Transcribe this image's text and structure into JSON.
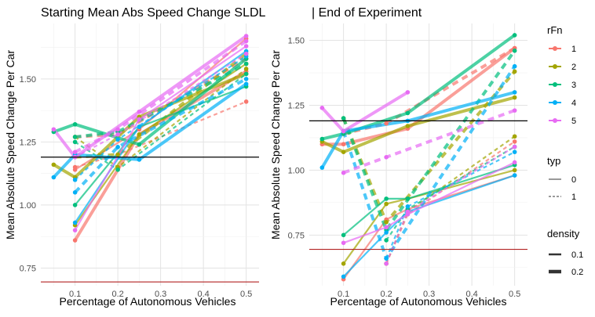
{
  "titles": {
    "left": "Starting Mean Abs Speed Change SLDL",
    "right": "| End of Experiment"
  },
  "legend": {
    "rfn_title": "rFn",
    "rfn_items": [
      "1",
      "2",
      "3",
      "4",
      "5"
    ],
    "typ_title": "typ",
    "typ_items": [
      "0",
      "1"
    ],
    "density_title": "density",
    "density_items": [
      "0.1",
      "0.2"
    ]
  },
  "colors": {
    "1": "#F8766D",
    "2": "#A3A500",
    "3": "#00BF7D",
    "4": "#00B0F6",
    "5": "#E76BF3",
    "hline_black": "#000000",
    "hline_red": "#B22222"
  },
  "chart_data": [
    {
      "type": "line",
      "title": "Starting Mean Abs Speed Change SLDL",
      "xlabel": "Percentage of Autonomous Vehicles",
      "ylabel": "Mean Absolute Speed Change Per Car",
      "xlim": [
        0.02,
        0.53
      ],
      "ylim": [
        0.68,
        1.72
      ],
      "xticks": [
        "0.1",
        "0.2",
        "0.3",
        "0.4",
        "0.5"
      ],
      "yticks": [
        "0.75",
        "1.00",
        "1.25",
        "1.50"
      ],
      "hlines": [
        {
          "y": 1.19,
          "color": "black"
        },
        {
          "y": 0.695,
          "color": "red"
        }
      ],
      "grid": true,
      "series": [
        {
          "rfn": "1",
          "typ": "0",
          "density": "0.2",
          "x": [
            0.1,
            0.25,
            0.5
          ],
          "y": [
            0.86,
            1.28,
            1.53
          ]
        },
        {
          "rfn": "1",
          "typ": "0",
          "density": "0.1",
          "x": [
            0.1,
            0.25,
            0.5
          ],
          "y": [
            1.14,
            1.3,
            1.66
          ]
        },
        {
          "rfn": "1",
          "typ": "1",
          "density": "0.2",
          "x": [
            0.1,
            0.2,
            0.5
          ],
          "y": [
            1.27,
            1.28,
            1.58
          ]
        },
        {
          "rfn": "1",
          "typ": "1",
          "density": "0.1",
          "x": [
            0.1,
            0.2,
            0.5
          ],
          "y": [
            1.15,
            1.2,
            1.41
          ]
        },
        {
          "rfn": "2",
          "typ": "0",
          "density": "0.2",
          "x": [
            0.05,
            0.1,
            0.25,
            0.5
          ],
          "y": [
            1.16,
            1.11,
            1.35,
            1.52
          ]
        },
        {
          "rfn": "2",
          "typ": "0",
          "density": "0.1",
          "x": [
            0.1,
            0.25,
            0.5
          ],
          "y": [
            0.92,
            1.28,
            1.56
          ]
        },
        {
          "rfn": "2",
          "typ": "1",
          "density": "0.2",
          "x": [
            0.1,
            0.2,
            0.5
          ],
          "y": [
            1.19,
            1.2,
            1.6
          ]
        },
        {
          "rfn": "2",
          "typ": "1",
          "density": "0.1",
          "x": [
            0.1,
            0.2,
            0.5
          ],
          "y": [
            1.27,
            1.15,
            1.54
          ]
        },
        {
          "rfn": "3",
          "typ": "0",
          "density": "0.2",
          "x": [
            0.05,
            0.1,
            0.25,
            0.5
          ],
          "y": [
            1.29,
            1.32,
            1.24,
            1.58
          ]
        },
        {
          "rfn": "3",
          "typ": "0",
          "density": "0.1",
          "x": [
            0.1,
            0.25,
            0.5
          ],
          "y": [
            1.0,
            1.31,
            1.47
          ]
        },
        {
          "rfn": "3",
          "typ": "1",
          "density": "0.2",
          "x": [
            0.1,
            0.2,
            0.5
          ],
          "y": [
            1.27,
            1.29,
            1.56
          ]
        },
        {
          "rfn": "3",
          "typ": "1",
          "density": "0.1",
          "x": [
            0.1,
            0.2,
            0.5
          ],
          "y": [
            1.25,
            1.14,
            1.52
          ]
        },
        {
          "rfn": "4",
          "typ": "0",
          "density": "0.2",
          "x": [
            0.05,
            0.1,
            0.25,
            0.5
          ],
          "y": [
            1.11,
            1.2,
            1.18,
            1.48
          ]
        },
        {
          "rfn": "4",
          "typ": "0",
          "density": "0.1",
          "x": [
            0.1,
            0.25,
            0.5
          ],
          "y": [
            0.93,
            1.31,
            1.61
          ]
        },
        {
          "rfn": "4",
          "typ": "1",
          "density": "0.2",
          "x": [
            0.1,
            0.2,
            0.5
          ],
          "y": [
            1.05,
            1.23,
            1.5
          ]
        },
        {
          "rfn": "4",
          "typ": "1",
          "density": "0.1",
          "x": [
            0.1,
            0.2,
            0.5
          ],
          "y": [
            1.1,
            1.26,
            1.59
          ]
        },
        {
          "rfn": "5",
          "typ": "0",
          "density": "0.2",
          "x": [
            0.05,
            0.1,
            0.25,
            0.5
          ],
          "y": [
            1.3,
            1.19,
            1.37,
            1.67
          ]
        },
        {
          "rfn": "5",
          "typ": "0",
          "density": "0.1",
          "x": [
            0.1,
            0.25,
            0.5
          ],
          "y": [
            0.9,
            1.34,
            1.63
          ]
        },
        {
          "rfn": "5",
          "typ": "1",
          "density": "0.2",
          "x": [
            0.1,
            0.2,
            0.5
          ],
          "y": [
            1.21,
            1.3,
            1.65
          ]
        },
        {
          "rfn": "5",
          "typ": "1",
          "density": "0.1",
          "x": [
            0.1,
            0.2,
            0.5
          ],
          "y": [
            1.19,
            1.28,
            1.6
          ]
        }
      ]
    },
    {
      "type": "line",
      "title": "| End of Experiment",
      "xlabel": "Percentage of Autonomous Vehicles",
      "ylabel": "Mean Absolute Speed Change Per Car",
      "xlim": [
        0.02,
        0.53
      ],
      "ylim": [
        0.555,
        1.565
      ],
      "xticks": [
        "0.1",
        "0.2",
        "0.3",
        "0.4",
        "0.5"
      ],
      "yticks": [
        "0.75",
        "1.00",
        "1.25",
        "1.50"
      ],
      "hlines": [
        {
          "y": 1.19,
          "color": "black"
        },
        {
          "y": 0.695,
          "color": "red"
        }
      ],
      "grid": true,
      "series": [
        {
          "rfn": "1",
          "typ": "0",
          "density": "0.2",
          "x": [
            0.05,
            0.1,
            0.25,
            0.5
          ],
          "y": [
            1.1,
            1.1,
            1.16,
            1.47
          ]
        },
        {
          "rfn": "1",
          "typ": "0",
          "density": "0.1",
          "x": [
            0.1,
            0.2,
            0.25,
            0.5
          ],
          "y": [
            0.58,
            0.81,
            0.85,
            0.98
          ]
        },
        {
          "rfn": "1",
          "typ": "1",
          "density": "0.2",
          "x": [
            0.1,
            0.2,
            0.5
          ],
          "y": [
            1.14,
            1.18,
            1.47
          ]
        },
        {
          "rfn": "1",
          "typ": "1",
          "density": "0.1",
          "x": [
            0.2,
            0.25,
            0.5
          ],
          "y": [
            0.64,
            0.83,
            1.11
          ]
        },
        {
          "rfn": "2",
          "typ": "0",
          "density": "0.2",
          "x": [
            0.05,
            0.1,
            0.25,
            0.5
          ],
          "y": [
            1.11,
            1.07,
            1.17,
            1.28
          ]
        },
        {
          "rfn": "2",
          "typ": "0",
          "density": "0.1",
          "x": [
            0.1,
            0.2,
            0.25,
            0.5
          ],
          "y": [
            0.64,
            0.87,
            0.89,
            1.0
          ]
        },
        {
          "rfn": "2",
          "typ": "1",
          "density": "0.2",
          "x": [
            0.1,
            0.2,
            0.5
          ],
          "y": [
            1.2,
            0.8,
            1.38
          ]
        },
        {
          "rfn": "2",
          "typ": "1",
          "density": "0.1",
          "x": [
            0.2,
            0.25,
            0.5
          ],
          "y": [
            0.64,
            0.84,
            1.13
          ]
        },
        {
          "rfn": "3",
          "typ": "0",
          "density": "0.2",
          "x": [
            0.05,
            0.1,
            0.25,
            0.5
          ],
          "y": [
            1.12,
            1.14,
            1.22,
            1.52
          ]
        },
        {
          "rfn": "3",
          "typ": "0",
          "density": "0.1",
          "x": [
            0.1,
            0.2,
            0.25,
            0.5
          ],
          "y": [
            0.75,
            0.89,
            0.89,
            1.02
          ]
        },
        {
          "rfn": "3",
          "typ": "1",
          "density": "0.2",
          "x": [
            0.1,
            0.2,
            0.5
          ],
          "y": [
            1.2,
            0.77,
            1.46
          ]
        },
        {
          "rfn": "3",
          "typ": "1",
          "density": "0.1",
          "x": [
            0.2,
            0.25,
            0.5
          ],
          "y": [
            0.73,
            0.85,
            1.09
          ]
        },
        {
          "rfn": "4",
          "typ": "0",
          "density": "0.2",
          "x": [
            0.05,
            0.1,
            0.25,
            0.5
          ],
          "y": [
            1.01,
            1.15,
            1.19,
            1.3
          ]
        },
        {
          "rfn": "4",
          "typ": "0",
          "density": "0.1",
          "x": [
            0.1,
            0.2,
            0.25,
            0.5
          ],
          "y": [
            0.59,
            0.76,
            0.84,
            0.98
          ]
        },
        {
          "rfn": "4",
          "typ": "1",
          "density": "0.2",
          "x": [
            0.1,
            0.2,
            0.5
          ],
          "y": [
            1.15,
            0.66,
            1.4
          ]
        },
        {
          "rfn": "4",
          "typ": "1",
          "density": "0.1",
          "x": [
            0.2,
            0.25,
            0.5
          ],
          "y": [
            0.66,
            0.86,
            1.07
          ]
        },
        {
          "rfn": "5",
          "typ": "0",
          "density": "0.2",
          "x": [
            0.05,
            0.1,
            0.25
          ],
          "y": [
            1.24,
            1.15,
            1.3
          ]
        },
        {
          "rfn": "5",
          "typ": "0",
          "density": "0.1",
          "x": [
            0.1,
            0.2,
            0.25,
            0.5
          ],
          "y": [
            0.72,
            0.78,
            0.83,
            1.03
          ]
        },
        {
          "rfn": "5",
          "typ": "1",
          "density": "0.2",
          "x": [
            0.1,
            0.2,
            0.5
          ],
          "y": [
            0.99,
            1.05,
            1.23
          ]
        },
        {
          "rfn": "5",
          "typ": "1",
          "density": "0.1",
          "x": [
            0.2,
            0.25,
            0.5
          ],
          "y": [
            0.64,
            0.84,
            1.09
          ]
        }
      ]
    }
  ]
}
